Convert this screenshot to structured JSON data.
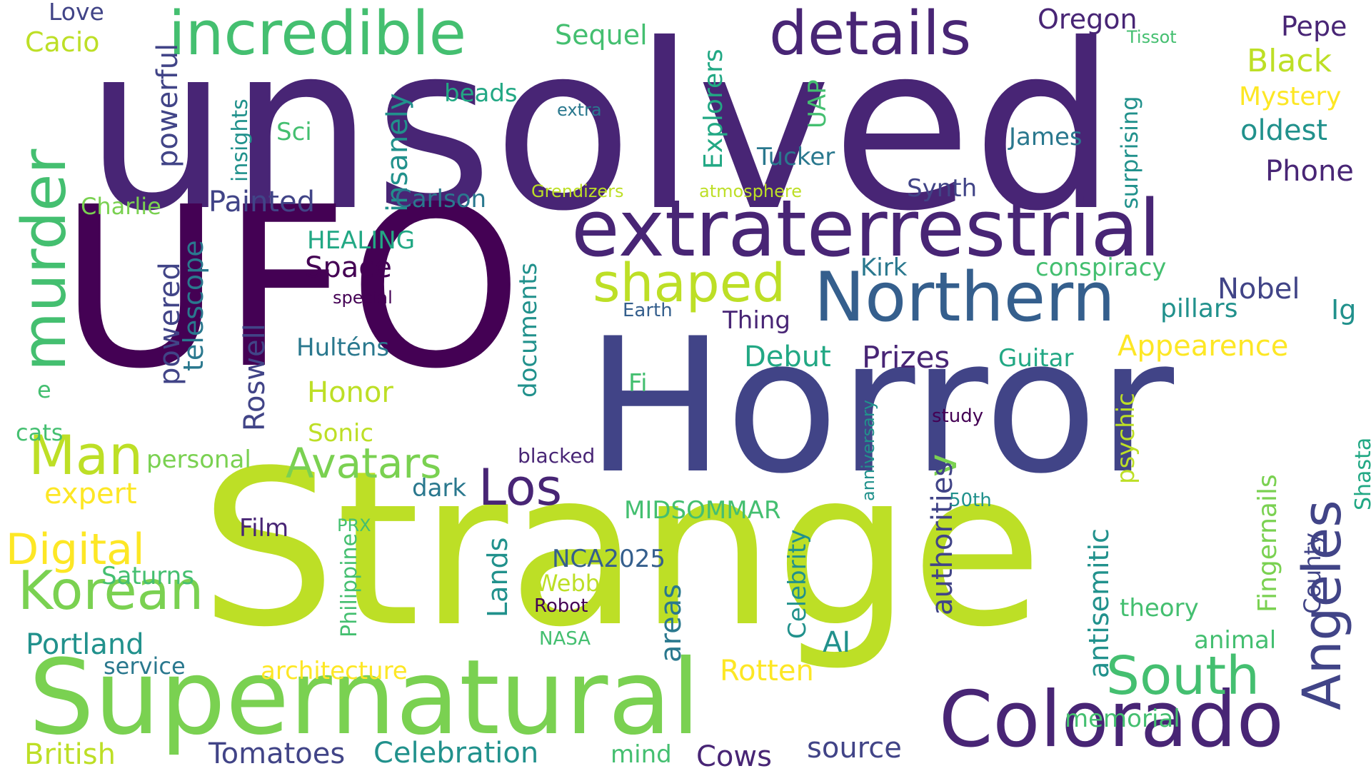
{
  "palette": {
    "c1": "#440154",
    "c2": "#482575",
    "c3": "#414487",
    "c4": "#355f8d",
    "c5": "#2a788e",
    "c6": "#21918c",
    "c7": "#22a884",
    "c8": "#44bf70",
    "c9": "#7ad151",
    "c10": "#bddf26",
    "c11": "#fde725"
  },
  "words": [
    {
      "text": "unsolved",
      "color": "#482575"
    },
    {
      "text": "UFO",
      "color": "#440154"
    },
    {
      "text": "Horror",
      "color": "#414487"
    },
    {
      "text": "Strange",
      "color": "#bddf26"
    },
    {
      "text": "Supernatural",
      "color": "#7ad151"
    },
    {
      "text": "extraterrestrial",
      "color": "#482575"
    },
    {
      "text": "Northern",
      "color": "#355f8d"
    },
    {
      "text": "Colorado",
      "color": "#482575"
    },
    {
      "text": "incredible",
      "color": "#44bf70"
    },
    {
      "text": "details",
      "color": "#482575"
    },
    {
      "text": "murder",
      "color": "#44bf70"
    },
    {
      "text": "shaped",
      "color": "#bddf26"
    },
    {
      "text": "Angeles",
      "color": "#414487"
    },
    {
      "text": "South",
      "color": "#44bf70"
    },
    {
      "text": "Man",
      "color": "#bddf26"
    },
    {
      "text": "Los",
      "color": "#482575"
    },
    {
      "text": "Korean",
      "color": "#7ad151"
    },
    {
      "text": "Digital",
      "color": "#fde725"
    },
    {
      "text": "Avatars",
      "color": "#7ad151"
    },
    {
      "text": "v",
      "color": "#7ad151"
    },
    {
      "text": "Love",
      "color": "#414487"
    },
    {
      "text": "Cacio",
      "color": "#bddf26"
    },
    {
      "text": "powerful",
      "color": "#414487"
    },
    {
      "text": "Sequel",
      "color": "#44bf70"
    },
    {
      "text": "Explorers",
      "color": "#22a884"
    },
    {
      "text": "Oregon",
      "color": "#482575"
    },
    {
      "text": "Tissot",
      "color": "#44bf70"
    },
    {
      "text": "Pepe",
      "color": "#482575"
    },
    {
      "text": "Black",
      "color": "#bddf26"
    },
    {
      "text": "Mystery",
      "color": "#fde725"
    },
    {
      "text": "oldest",
      "color": "#21918c"
    },
    {
      "text": "Phone",
      "color": "#482575"
    },
    {
      "text": "beads",
      "color": "#22a884"
    },
    {
      "text": "extra",
      "color": "#2a788e"
    },
    {
      "text": "UAP",
      "color": "#44bf70"
    },
    {
      "text": "surprising",
      "color": "#21918c"
    },
    {
      "text": "James",
      "color": "#2a788e"
    },
    {
      "text": "Sci",
      "color": "#44bf70"
    },
    {
      "text": "insights",
      "color": "#21918c"
    },
    {
      "text": "insanely",
      "color": "#21918c"
    },
    {
      "text": "Tucker",
      "color": "#2a788e"
    },
    {
      "text": "Synth",
      "color": "#414487"
    },
    {
      "text": "Charlie",
      "color": "#7ad151"
    },
    {
      "text": "Painted",
      "color": "#414487"
    },
    {
      "text": "Carlson",
      "color": "#2a788e"
    },
    {
      "text": "Grendizers",
      "color": "#bddf26"
    },
    {
      "text": "atmosphere",
      "color": "#bddf26"
    },
    {
      "text": "Kirk",
      "color": "#2a788e"
    },
    {
      "text": "conspiracy",
      "color": "#44bf70"
    },
    {
      "text": "Nobel",
      "color": "#414487"
    },
    {
      "text": "Ig",
      "color": "#21918c"
    },
    {
      "text": "pillars",
      "color": "#21918c"
    },
    {
      "text": "HEALING",
      "color": "#22a884"
    },
    {
      "text": "Space",
      "color": "#440154"
    },
    {
      "text": "special",
      "color": "#440154"
    },
    {
      "text": "telescope",
      "color": "#2a788e"
    },
    {
      "text": "powered",
      "color": "#414487"
    },
    {
      "text": "Roswell",
      "color": "#414487"
    },
    {
      "text": "documents",
      "color": "#21918c"
    },
    {
      "text": "Earth",
      "color": "#355f8d"
    },
    {
      "text": "Thing",
      "color": "#482575"
    },
    {
      "text": "Appearence",
      "color": "#fde725"
    },
    {
      "text": "Hulténs",
      "color": "#2a788e"
    },
    {
      "text": "Prizes",
      "color": "#482575"
    },
    {
      "text": "Debut",
      "color": "#22a884"
    },
    {
      "text": "Guitar",
      "color": "#22a884"
    },
    {
      "text": "Honor",
      "color": "#bddf26"
    },
    {
      "text": "Fi",
      "color": "#44bf70"
    },
    {
      "text": "anniversary",
      "color": "#21918c"
    },
    {
      "text": "study",
      "color": "#440154"
    },
    {
      "text": "psychic",
      "color": "#bddf26"
    },
    {
      "text": "Shasta",
      "color": "#22a884"
    },
    {
      "text": "e",
      "color": "#44bf70"
    },
    {
      "text": "cats",
      "color": "#44bf70"
    },
    {
      "text": "Sonic",
      "color": "#bddf26"
    },
    {
      "text": "personal",
      "color": "#7ad151"
    },
    {
      "text": "blacked",
      "color": "#482575"
    },
    {
      "text": "authorities",
      "color": "#414487"
    },
    {
      "text": "Fingernails",
      "color": "#7ad151"
    },
    {
      "text": "expert",
      "color": "#fde725"
    },
    {
      "text": "dark",
      "color": "#2a788e"
    },
    {
      "text": "MIDSOMMAR",
      "color": "#44bf70"
    },
    {
      "text": "Film",
      "color": "#482575"
    },
    {
      "text": "PRX",
      "color": "#44bf70"
    },
    {
      "text": "Philippine",
      "color": "#44bf70"
    },
    {
      "text": "Lands",
      "color": "#21918c"
    },
    {
      "text": "Celebrity",
      "color": "#21918c"
    },
    {
      "text": "50th",
      "color": "#21918c"
    },
    {
      "text": "antisemitic",
      "color": "#21918c"
    },
    {
      "text": "County",
      "color": "#414487"
    },
    {
      "text": "Saturns",
      "color": "#44bf70"
    },
    {
      "text": "NCA2025",
      "color": "#355f8d"
    },
    {
      "text": "Webb",
      "color": "#bddf26"
    },
    {
      "text": "areas",
      "color": "#2a788e"
    },
    {
      "text": "theory",
      "color": "#44bf70"
    },
    {
      "text": "Robot",
      "color": "#440154"
    },
    {
      "text": "Portland",
      "color": "#21918c"
    },
    {
      "text": "AI",
      "color": "#21918c"
    },
    {
      "text": "animal",
      "color": "#44bf70"
    },
    {
      "text": "NASA",
      "color": "#44bf70"
    },
    {
      "text": "service",
      "color": "#2a788e"
    },
    {
      "text": "architecture",
      "color": "#fde725"
    },
    {
      "text": "Rotten",
      "color": "#fde725"
    },
    {
      "text": "memorial",
      "color": "#44bf70"
    },
    {
      "text": "British",
      "color": "#bddf26"
    },
    {
      "text": "Tomatoes",
      "color": "#414487"
    },
    {
      "text": "Celebration",
      "color": "#21918c"
    },
    {
      "text": "mind",
      "color": "#44bf70"
    },
    {
      "text": "Cows",
      "color": "#482575"
    },
    {
      "text": "source",
      "color": "#414487"
    }
  ]
}
